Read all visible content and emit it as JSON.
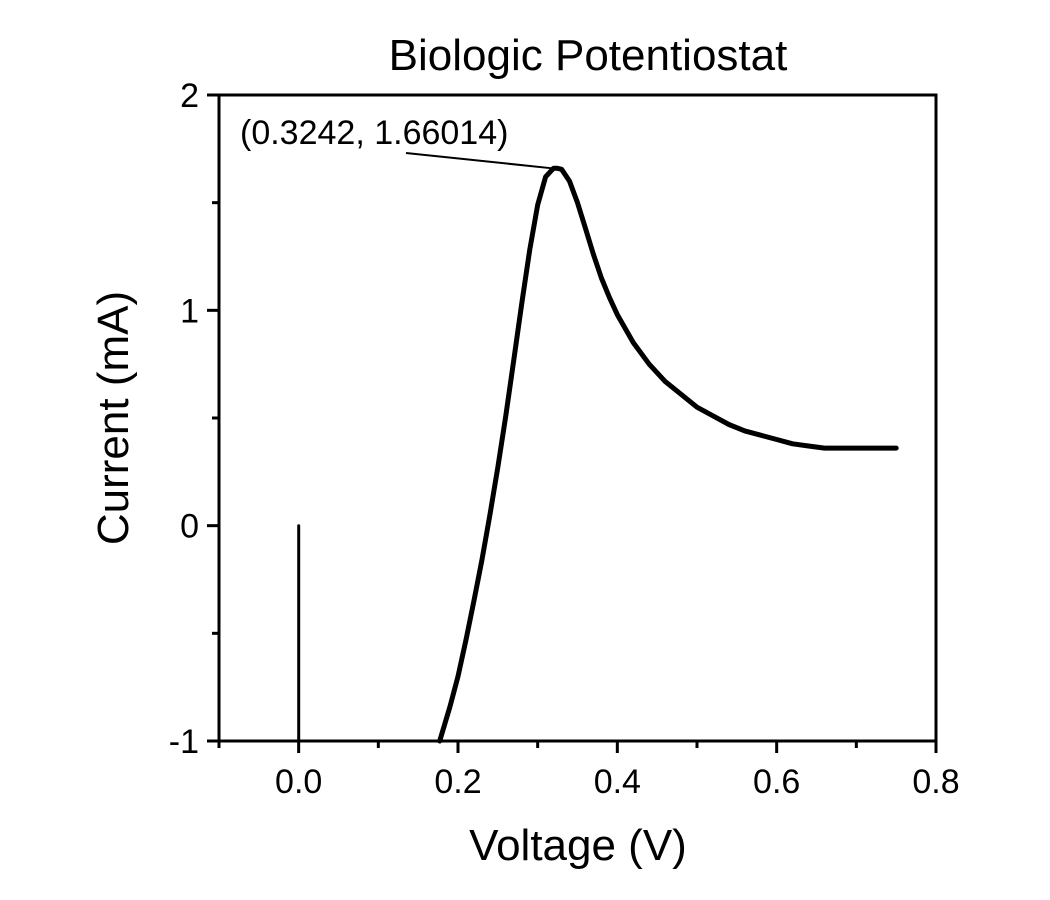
{
  "chart_data": {
    "type": "line",
    "title": "Biologic Potentiostat",
    "xlabel": "Voltage (V)",
    "ylabel": "Current (mA)",
    "xlim": [
      -0.1,
      0.8
    ],
    "ylim": [
      -1,
      2
    ],
    "x_ticks": [
      0.0,
      0.2,
      0.4,
      0.6,
      0.8
    ],
    "x_tick_labels": [
      "0.0",
      "0.2",
      "0.4",
      "0.6",
      "0.8"
    ],
    "y_ticks": [
      -1,
      0,
      1,
      2
    ],
    "y_tick_labels": [
      "-1",
      "0",
      "1",
      "2"
    ],
    "grid": false,
    "color": "#000000",
    "series": [
      {
        "x": [
          0.0,
          0.0
        ],
        "y": [
          -1.0,
          0.0
        ]
      },
      {
        "x": [
          0.177,
          0.19,
          0.2,
          0.21,
          0.22,
          0.23,
          0.24,
          0.25,
          0.26,
          0.27,
          0.28,
          0.29,
          0.3,
          0.31,
          0.32,
          0.3242,
          0.33,
          0.34,
          0.35,
          0.36,
          0.37,
          0.38,
          0.39,
          0.4,
          0.42,
          0.44,
          0.46,
          0.48,
          0.5,
          0.52,
          0.54,
          0.56,
          0.58,
          0.6,
          0.62,
          0.64,
          0.66,
          0.68,
          0.7,
          0.72,
          0.75
        ],
        "y": [
          -1.0,
          -0.84,
          -0.7,
          -0.53,
          -0.35,
          -0.16,
          0.05,
          0.27,
          0.51,
          0.77,
          1.03,
          1.28,
          1.49,
          1.62,
          1.66,
          1.66014,
          1.655,
          1.6,
          1.5,
          1.38,
          1.26,
          1.15,
          1.06,
          0.98,
          0.85,
          0.75,
          0.67,
          0.61,
          0.55,
          0.51,
          0.47,
          0.44,
          0.42,
          0.4,
          0.38,
          0.37,
          0.36,
          0.36,
          0.36,
          0.36,
          0.36
        ]
      }
    ],
    "annotations": [
      {
        "text": "(0.3242, 1.66014)",
        "x": 0.3242,
        "y": 1.66014
      }
    ]
  }
}
